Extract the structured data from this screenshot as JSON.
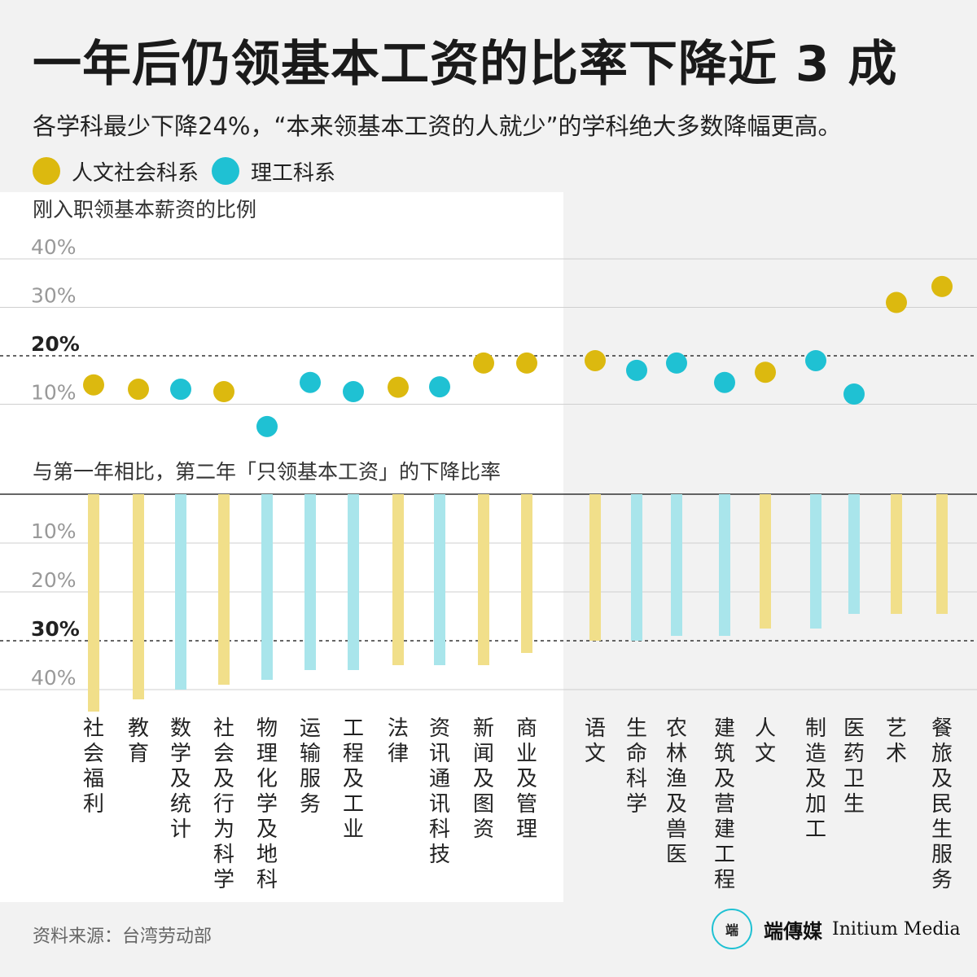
{
  "title": "一年后仍领基本工资的比率下降近 3 成",
  "subtitle": "各学科最少下降24%，“本来领基本工资的人就少”的学科绝大多数降幅更高。",
  "legend": [
    {
      "label": "人文社会科系",
      "color": "#dcb90f"
    },
    {
      "label": "理工科系",
      "color": "#1fc1d3"
    }
  ],
  "source": "资料来源：台湾劳动部",
  "brand": {
    "mark": "端",
    "name_zh": "端傳媒",
    "name_en": "Initium Media"
  },
  "colors": {
    "humanities": "#dcb90f",
    "science": "#1fc1d3",
    "humanities_bar": "#f1df8a",
    "science_bar": "#a9e5eb"
  },
  "chart_data": [
    {
      "type": "scatter",
      "title": "刚入职领基本薪资的比例",
      "y_ticks": [
        "40%",
        "30%",
        "20%",
        "10%"
      ],
      "ylim": [
        0,
        40
      ],
      "reference_line": 20,
      "categories": [
        "社会福利",
        "教育",
        "数学及统计",
        "社会及行为科学",
        "物理化学及地科",
        "运输服务",
        "工程及工业",
        "法律",
        "资讯通讯科技",
        "新闻及图资",
        "商业及管理",
        "语文",
        "生命科学",
        "农林渔及兽医",
        "建筑及营建工程",
        "人文",
        "制造及加工",
        "医药卫生",
        "艺术",
        "餐旅及民生服务"
      ],
      "groups": [
        "人文社会科系",
        "人文社会科系",
        "理工科系",
        "人文社会科系",
        "理工科系",
        "理工科系",
        "理工科系",
        "人文社会科系",
        "理工科系",
        "人文社会科系",
        "人文社会科系",
        "人文社会科系",
        "理工科系",
        "理工科系",
        "理工科系",
        "人文社会科系",
        "理工科系",
        "理工科系",
        "人文社会科系",
        "人文社会科系"
      ],
      "values": [
        14,
        13.1,
        13.1,
        12.6,
        5.4,
        14.5,
        12.6,
        13.5,
        13.6,
        18.5,
        18.5,
        19,
        17,
        18.5,
        14.5,
        16.6,
        19,
        12.1,
        31,
        34.3
      ]
    },
    {
      "type": "bar",
      "title": "与第一年相比，第二年「只领基本工资」的下降比率",
      "y_ticks": [
        "10%",
        "20%",
        "30%",
        "40%"
      ],
      "ylim": [
        0,
        40
      ],
      "reference_line": 30,
      "categories": [
        "社会福利",
        "教育",
        "数学及统计",
        "社会及行为科学",
        "物理化学及地科",
        "运输服务",
        "工程及工业",
        "法律",
        "资讯通讯科技",
        "新闻及图资",
        "商业及管理",
        "语文",
        "生命科学",
        "农林渔及兽医",
        "建筑及营建工程",
        "人文",
        "制造及加工",
        "医药卫生",
        "艺术",
        "餐旅及民生服务"
      ],
      "values": [
        44.5,
        42,
        40,
        39,
        38,
        36,
        36,
        35,
        35,
        35,
        32.5,
        30,
        30,
        29,
        29,
        27.5,
        27.5,
        24.5,
        24.5,
        24.5
      ]
    }
  ]
}
